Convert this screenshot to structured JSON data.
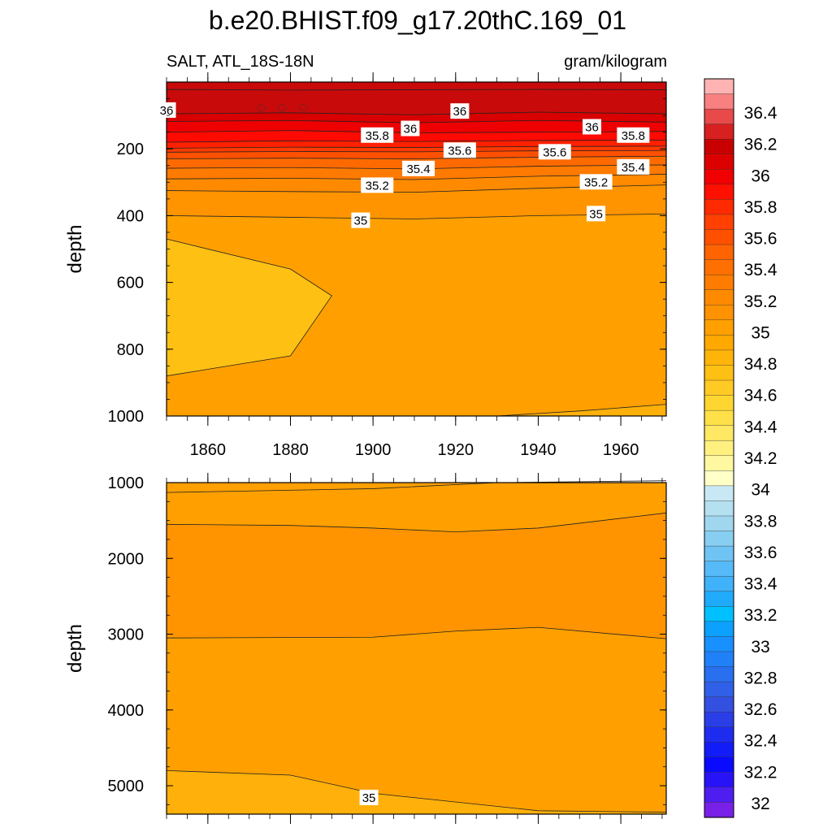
{
  "title": "b.e20.BHIST.f09_g17.20thC.169_01",
  "subtitle_left": "SALT, ATL_18S-18N",
  "subtitle_right": "gram/kilogram",
  "chart_data": [
    {
      "type": "contour",
      "panel": "upper",
      "variable": "SALT",
      "region": "ATL_18S-18N",
      "units": "gram/kilogram",
      "xlabel": "",
      "ylabel": "depth",
      "xlim": [
        1850,
        1971
      ],
      "ylim": [
        1000,
        0
      ],
      "y_surface_start": 15,
      "xticks": [
        1860,
        1880,
        1900,
        1920,
        1940,
        1960
      ],
      "yticks": [
        200,
        400,
        600,
        800,
        1000
      ],
      "tick_labels": [
        "200",
        "400",
        "600",
        "800",
        "1000"
      ],
      "x_tick_labels": [
        "1860",
        "1880",
        "1900",
        "1920",
        "1940",
        "1960"
      ],
      "band_fills": [
        {
          "value": 34.8,
          "color": "#ffc014"
        },
        {
          "value": 34.9,
          "color": "#ffb00a"
        },
        {
          "value": 35.0,
          "color": "#ffa000"
        },
        {
          "value": 35.1,
          "color": "#ff9400"
        },
        {
          "value": 35.2,
          "color": "#ff8a00"
        },
        {
          "value": 35.3,
          "color": "#ff7a00"
        },
        {
          "value": 35.4,
          "color": "#ff6a00"
        },
        {
          "value": 35.5,
          "color": "#ff5000"
        },
        {
          "value": 35.6,
          "color": "#ff3a00"
        },
        {
          "value": 35.7,
          "color": "#ff2000"
        },
        {
          "value": 35.8,
          "color": "#ff0a00"
        },
        {
          "value": 35.9,
          "color": "#ee0000"
        },
        {
          "value": 36.0,
          "color": "#d80000"
        },
        {
          "value": 36.1,
          "color": "#c90a0a"
        }
      ],
      "contours": [
        {
          "level": 36.1,
          "depths": [
            [
              1850,
              22
            ],
            [
              1880,
              24
            ],
            [
              1910,
              23
            ],
            [
              1940,
              22
            ],
            [
              1971,
              23
            ]
          ]
        },
        {
          "level": 36.0,
          "depths": [
            [
              1850,
              95
            ],
            [
              1880,
              92
            ],
            [
              1910,
              98
            ],
            [
              1940,
              90
            ],
            [
              1971,
              95
            ]
          ]
        },
        {
          "level": 35.9,
          "depths": [
            [
              1850,
              118
            ],
            [
              1880,
              115
            ],
            [
              1910,
              122
            ],
            [
              1940,
              115
            ],
            [
              1971,
              120
            ]
          ]
        },
        {
          "level": 35.8,
          "depths": [
            [
              1850,
              150
            ],
            [
              1880,
              145
            ],
            [
              1910,
              152
            ],
            [
              1940,
              150
            ],
            [
              1971,
              148
            ]
          ]
        },
        {
          "level": 35.7,
          "depths": [
            [
              1850,
              180
            ],
            [
              1880,
              176
            ],
            [
              1910,
              178
            ],
            [
              1940,
              175
            ],
            [
              1971,
              174
            ]
          ]
        },
        {
          "level": 35.6,
          "depths": [
            [
              1850,
              198
            ],
            [
              1880,
              195
            ],
            [
              1910,
              196
            ],
            [
              1940,
              193
            ],
            [
              1971,
              192
            ]
          ]
        },
        {
          "level": 35.5,
          "depths": [
            [
              1850,
              210
            ],
            [
              1880,
              208
            ],
            [
              1910,
              209
            ],
            [
              1940,
              206
            ],
            [
              1971,
              205
            ]
          ]
        },
        {
          "level": 35.4,
          "depths": [
            [
              1850,
              230
            ],
            [
              1880,
              228
            ],
            [
              1910,
              230
            ],
            [
              1940,
              225
            ],
            [
              1971,
              222
            ]
          ]
        },
        {
          "level": 35.3,
          "depths": [
            [
              1850,
              258
            ],
            [
              1880,
              256
            ],
            [
              1910,
              260
            ],
            [
              1940,
              252
            ],
            [
              1971,
              248
            ]
          ]
        },
        {
          "level": 35.2,
          "depths": [
            [
              1850,
              290
            ],
            [
              1880,
              288
            ],
            [
              1910,
              292
            ],
            [
              1940,
              282
            ],
            [
              1971,
              276
            ]
          ]
        },
        {
          "level": 35.1,
          "depths": [
            [
              1850,
              325
            ],
            [
              1880,
              328
            ],
            [
              1910,
              330
            ],
            [
              1940,
              318
            ],
            [
              1971,
              308
            ]
          ]
        },
        {
          "level": 35.0,
          "depths": [
            [
              1850,
              400
            ],
            [
              1880,
              405
            ],
            [
              1910,
              410
            ],
            [
              1940,
              400
            ],
            [
              1971,
              395
            ]
          ]
        },
        {
          "level": 34.9,
          "depths": [
            [
              1850,
              470
            ],
            [
              1880,
              560
            ],
            [
              1890,
              640
            ],
            [
              1880,
              820
            ],
            [
              1850,
              880
            ]
          ]
        },
        {
          "level": 34.9,
          "depths": [
            [
              1930,
              1000
            ],
            [
              1950,
              985
            ],
            [
              1971,
              965
            ]
          ]
        }
      ],
      "contour_labels": [
        {
          "text": "36",
          "year": 1850,
          "depth": 85
        },
        {
          "text": "36",
          "year": 1921,
          "depth": 88
        },
        {
          "text": "36",
          "year": 1909,
          "depth": 140
        },
        {
          "text": "36",
          "year": 1953,
          "depth": 135
        },
        {
          "text": "35.8",
          "year": 1901,
          "depth": 160
        },
        {
          "text": "35.8",
          "year": 1963,
          "depth": 160
        },
        {
          "text": "35.6",
          "year": 1921,
          "depth": 205
        },
        {
          "text": "35.6",
          "year": 1944,
          "depth": 210
        },
        {
          "text": "35.4",
          "year": 1911,
          "depth": 260
        },
        {
          "text": "35.4",
          "year": 1963,
          "depth": 255
        },
        {
          "text": "35.2",
          "year": 1901,
          "depth": 310
        },
        {
          "text": "35.2",
          "year": 1954,
          "depth": 300
        },
        {
          "text": "35",
          "year": 1897,
          "depth": 415
        },
        {
          "text": "35",
          "year": 1954,
          "depth": 395
        }
      ]
    },
    {
      "type": "contour",
      "panel": "lower",
      "variable": "SALT",
      "units": "gram/kilogram",
      "xlabel": "",
      "ylabel": "depth",
      "xlim": [
        1850,
        1971
      ],
      "ylim": [
        5375,
        1000
      ],
      "yticks": [
        1000,
        2000,
        3000,
        4000,
        5000
      ],
      "tick_labels": [
        "1000",
        "2000",
        "3000",
        "4000",
        "5000"
      ],
      "band_fills": [
        {
          "value": 34.95,
          "color": "#ffa000"
        },
        {
          "value": 35.05,
          "color": "#ff9400"
        },
        {
          "value": 34.9,
          "color": "#ffb00a"
        }
      ],
      "contours": [
        {
          "level": 35.0,
          "depths": [
            [
              1850,
              1130
            ],
            [
              1900,
              1080
            ],
            [
              1930,
              1000
            ],
            [
              1971,
              975
            ]
          ]
        },
        {
          "level": 35.05,
          "depths": [
            [
              1850,
              1550
            ],
            [
              1880,
              1565
            ],
            [
              1900,
              1600
            ],
            [
              1920,
              1650
            ],
            [
              1940,
              1600
            ],
            [
              1971,
              1400
            ]
          ]
        },
        {
          "level": 35.05,
          "depths": [
            [
              1850,
              3050
            ],
            [
              1900,
              3040
            ],
            [
              1920,
              2960
            ],
            [
              1940,
              2910
            ],
            [
              1971,
              3060
            ]
          ]
        },
        {
          "level": 34.95,
          "depths": [
            [
              1850,
              4800
            ],
            [
              1880,
              4860
            ],
            [
              1900,
              5100
            ],
            [
              1940,
              5330
            ],
            [
              1971,
              5350
            ]
          ]
        }
      ],
      "contour_labels": [
        {
          "text": "35",
          "year": 1899,
          "depth": 5160
        }
      ]
    }
  ],
  "colorbar": {
    "labels": [
      "36.4",
      "36.2",
      "36",
      "35.8",
      "35.6",
      "35.4",
      "35.2",
      "35",
      "34.8",
      "34.6",
      "34.4",
      "34.2",
      "34",
      "33.8",
      "33.6",
      "33.4",
      "33.2",
      "33",
      "32.8",
      "32.6",
      "32.4",
      "32.2",
      "32"
    ],
    "colors": [
      "#ffb3b3",
      "#f88080",
      "#e84a4a",
      "#d82020",
      "#c90000",
      "#dd0000",
      "#f00000",
      "#ff1000",
      "#ff2a00",
      "#ff4000",
      "#ff5000",
      "#ff6400",
      "#ff7000",
      "#ff7c00",
      "#ff8a00",
      "#ff9200",
      "#ffa000",
      "#ffa800",
      "#ffb40a",
      "#ffc014",
      "#ffca24",
      "#ffd630",
      "#ffe048",
      "#ffe864",
      "#fff080",
      "#fff8a0",
      "#ffffc8",
      "#c8e8f4",
      "#b4e0f0",
      "#a0d6ee",
      "#88cef0",
      "#70c4f4",
      "#56baf8",
      "#40b2fa",
      "#20aafc",
      "#00c0ff",
      "#0ca0ff",
      "#1890ff",
      "#2080f8",
      "#2870f0",
      "#3060e8",
      "#3450e0",
      "#2a3ee8",
      "#1e2cf0",
      "#121cf8",
      "#0a0aff",
      "#2812f8",
      "#4e1ef0",
      "#7820e8"
    ]
  }
}
